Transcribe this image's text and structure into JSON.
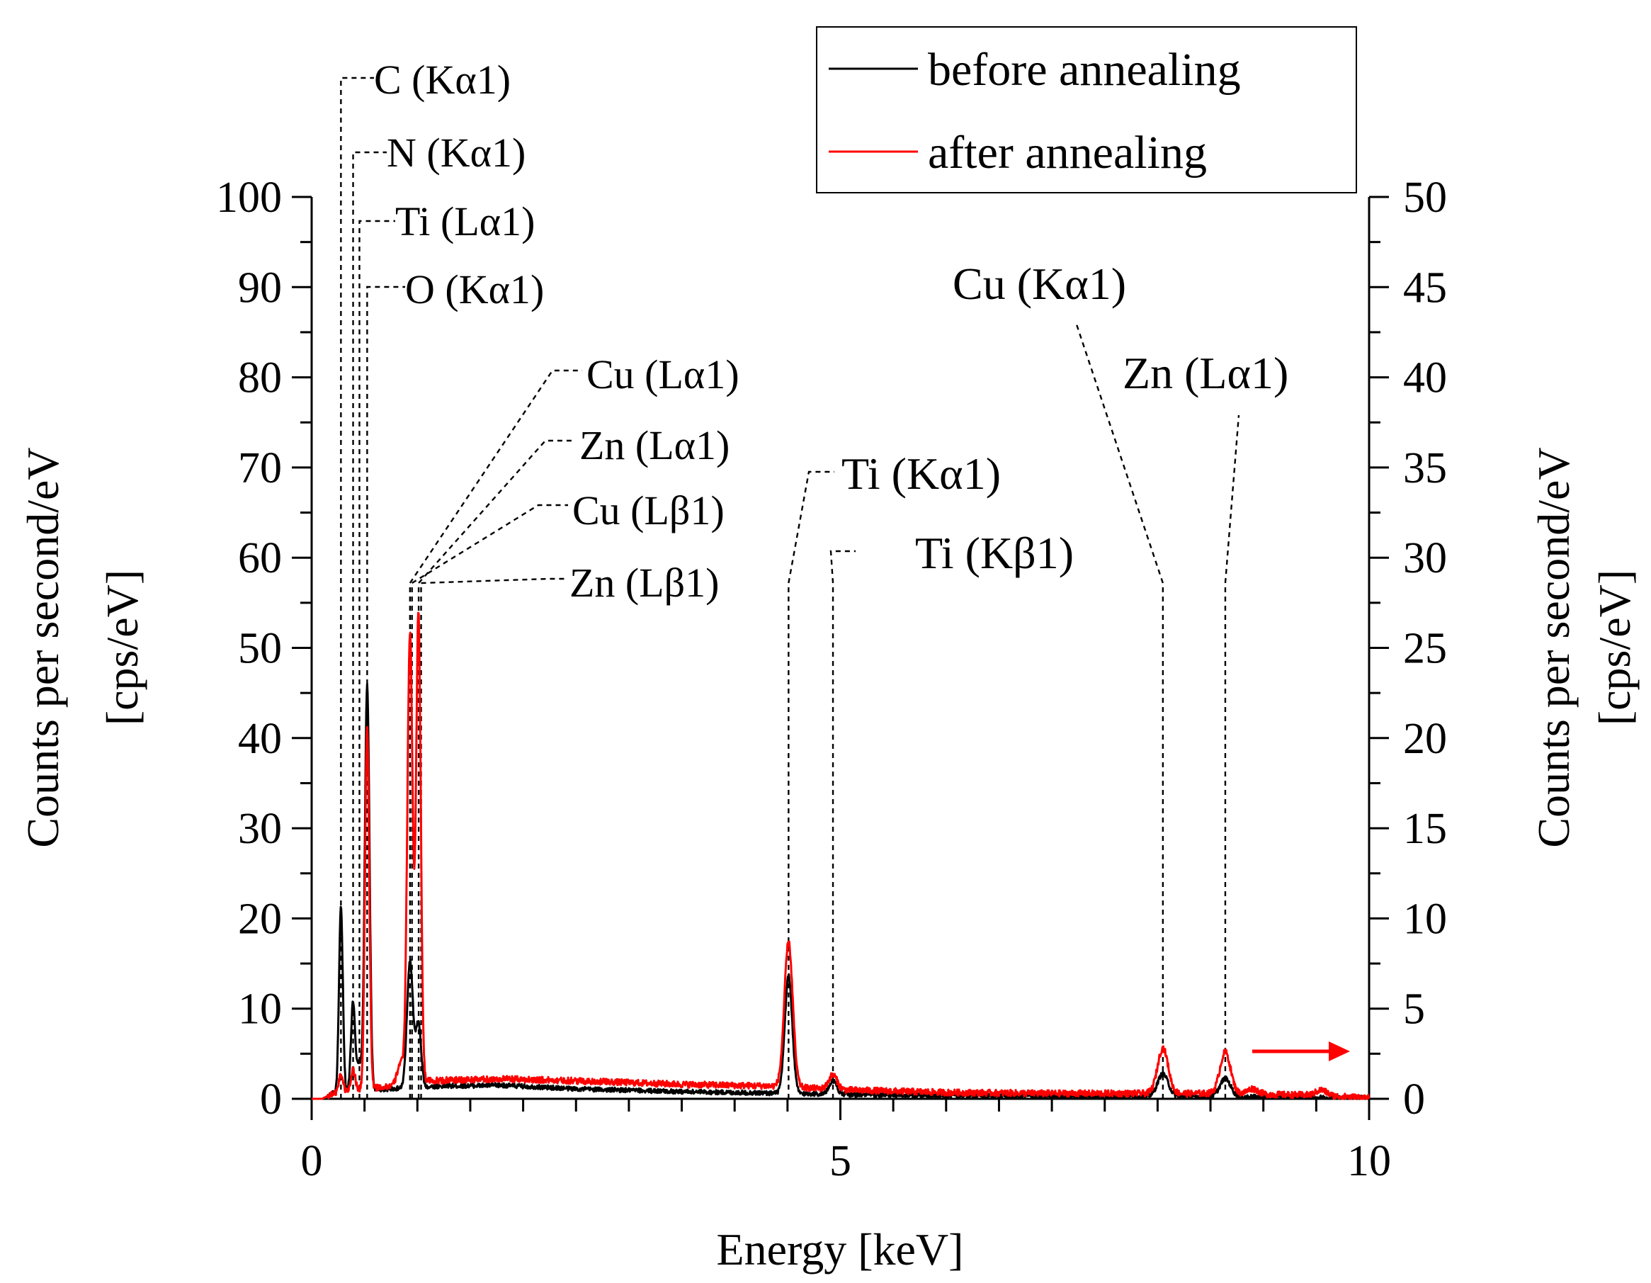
{
  "chart_data": {
    "type": "line",
    "title": "",
    "xlabel": "Energy [keV]",
    "ylabel_left": "Counts per second/eV",
    "ylabel_left_unit": "[cps/eV]",
    "ylabel_right": "Counts per second/eV",
    "ylabel_right_unit": "[cps/eV]",
    "xlim": [
      0,
      10
    ],
    "ylim_left": [
      0,
      100
    ],
    "ylim_right": [
      0,
      50
    ],
    "x_ticks": [
      0,
      5,
      10
    ],
    "x_tick_labels": [
      "0",
      "5",
      "10"
    ],
    "y_left_ticks": [
      0,
      10,
      20,
      30,
      40,
      50,
      60,
      70,
      80,
      90,
      100
    ],
    "y_left_tick_labels": [
      "0",
      "10",
      "20",
      "30",
      "40",
      "50",
      "60",
      "70",
      "80",
      "90",
      "100"
    ],
    "y_right_ticks": [
      0,
      5,
      10,
      15,
      20,
      25,
      30,
      35,
      40,
      45,
      50
    ],
    "y_right_tick_labels": [
      "0",
      "5",
      "10",
      "15",
      "20",
      "25",
      "30",
      "35",
      "40",
      "45",
      "50"
    ],
    "grid": false,
    "legend_position": "top-right",
    "series": [
      {
        "name": "before annealing",
        "color": "#000000",
        "axis": "left",
        "peaks": [
          [
            0.277,
            20.5,
            0.018
          ],
          [
            0.392,
            10.0,
            0.02
          ],
          [
            0.452,
            3.0,
            0.02
          ],
          [
            0.525,
            45.0,
            0.022
          ],
          [
            0.93,
            14.0,
            0.028
          ],
          [
            1.01,
            7.0,
            0.025
          ],
          [
            4.51,
            13.0,
            0.035
          ],
          [
            4.93,
            1.5,
            0.035
          ],
          [
            8.05,
            2.5,
            0.05
          ],
          [
            8.64,
            2.0,
            0.05
          ]
        ],
        "background": [
          [
            0,
            0
          ],
          [
            0.1,
            0
          ],
          [
            0.2,
            0.6
          ],
          [
            0.6,
            1.0
          ],
          [
            1.2,
            1.4
          ],
          [
            1.8,
            1.5
          ],
          [
            2.5,
            1.1
          ],
          [
            3.5,
            0.8
          ],
          [
            4.5,
            0.6
          ],
          [
            5.5,
            0.4
          ],
          [
            7.0,
            0.3
          ],
          [
            8.5,
            0.25
          ],
          [
            10,
            0.1
          ]
        ]
      },
      {
        "name": "after annealing",
        "color": "#ff0000",
        "axis": "right",
        "peaks": [
          [
            0.277,
            1.0,
            0.02
          ],
          [
            0.392,
            1.2,
            0.02
          ],
          [
            0.525,
            20.0,
            0.02
          ],
          [
            0.84,
            1.2,
            0.03
          ],
          [
            0.93,
            25.0,
            0.025
          ],
          [
            1.01,
            26.0,
            0.022
          ],
          [
            4.51,
            8.0,
            0.04
          ],
          [
            4.93,
            0.8,
            0.04
          ],
          [
            8.05,
            2.5,
            0.05
          ],
          [
            8.64,
            2.3,
            0.05
          ],
          [
            8.9,
            0.3,
            0.05
          ],
          [
            9.55,
            0.3,
            0.05
          ]
        ],
        "background": [
          [
            0,
            0
          ],
          [
            0.1,
            0
          ],
          [
            0.2,
            0.3
          ],
          [
            0.6,
            0.6
          ],
          [
            1.1,
            1.0
          ],
          [
            1.8,
            1.1
          ],
          [
            2.5,
            1.0
          ],
          [
            3.5,
            0.8
          ],
          [
            4.4,
            0.7
          ],
          [
            5.0,
            0.5
          ],
          [
            6.0,
            0.35
          ],
          [
            7.0,
            0.3
          ],
          [
            8.5,
            0.3
          ],
          [
            9.5,
            0.2
          ],
          [
            10,
            0.05
          ]
        ]
      }
    ],
    "annotations": [
      {
        "label": "C (Kα1)",
        "energy": 0.277,
        "style": "small"
      },
      {
        "label": "N (Kα1)",
        "energy": 0.392,
        "style": "small"
      },
      {
        "label": "Ti (Lα1)",
        "energy": 0.452,
        "style": "small"
      },
      {
        "label": "O (Kα1)",
        "energy": 0.525,
        "style": "small"
      },
      {
        "label": "Cu (Lα1)",
        "energy": 0.93,
        "style": "small"
      },
      {
        "label": "Zn (Lα1)",
        "energy": 1.012,
        "style": "small"
      },
      {
        "label": "Cu (Lβ1)",
        "energy": 0.949,
        "style": "small"
      },
      {
        "label": "Zn (Lβ1)",
        "energy": 1.035,
        "style": "small"
      },
      {
        "label": "Ti (Kα1)",
        "energy": 4.51,
        "style": "small"
      },
      {
        "label": "Ti (Kβ1)",
        "energy": 4.93,
        "style": "big"
      },
      {
        "label": "Cu (Kα1)",
        "energy": 8.05,
        "style": "big"
      },
      {
        "label": "Zn (Lα1)",
        "energy": 8.64,
        "style": "big"
      }
    ],
    "arrow": {
      "direction": "right",
      "color": "#ff0000",
      "meaning": "right axis"
    }
  }
}
